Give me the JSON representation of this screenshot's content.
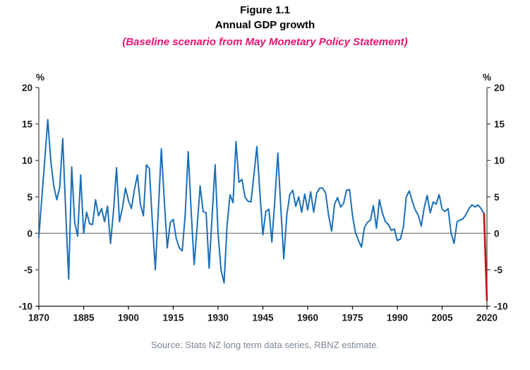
{
  "title": {
    "figure_number": "Figure 1.1",
    "figure_name": "Annual GDP growth",
    "subtitle": "(Baseline scenario from May Monetary Policy Statement)"
  },
  "source": "Source: Stats NZ long term data series, RBNZ estimate.",
  "colors": {
    "historical": "#1b6fb8",
    "estimate": "#c21212",
    "subtitle": "#e81370",
    "axis": "#4d4d4d",
    "axis_bottom": "#1a1a1a",
    "zero_line": "#808080",
    "tick_text": "#1a1a1a",
    "source_text": "#7b8794"
  },
  "chart_data": {
    "type": "line",
    "title": "Annual GDP growth",
    "ylabel_left": "%",
    "ylabel_right": "%",
    "ylim": [
      -10,
      20
    ],
    "yticks": [
      20,
      15,
      10,
      5,
      0,
      -5,
      -10
    ],
    "xlim": [
      1870,
      2020
    ],
    "xticks": [
      1870,
      1885,
      1900,
      1915,
      1930,
      1945,
      1960,
      1975,
      1990,
      2005,
      2020
    ],
    "grid": false,
    "legend": "none",
    "zero_line": true,
    "series": [
      {
        "name": "Annual GDP growth (Stats NZ long term data series)",
        "color_key": "historical",
        "start_year": 1870,
        "values": [
          -0.6,
          4.8,
          10.2,
          15.6,
          10.0,
          6.5,
          4.6,
          6.3,
          13.0,
          3.0,
          -6.3,
          9.1,
          1.5,
          -0.4,
          8.0,
          0.0,
          2.9,
          1.3,
          1.2,
          4.6,
          2.4,
          3.4,
          1.6,
          3.7,
          -1.4,
          3.0,
          9.0,
          1.6,
          3.5,
          6.2,
          4.5,
          3.4,
          6.0,
          8.0,
          4.0,
          2.4,
          9.4,
          8.9,
          1.5,
          -5.0,
          3.0,
          11.6,
          4.5,
          -2.0,
          1.5,
          1.9,
          -0.7,
          -2.0,
          -2.4,
          2.5,
          11.2,
          3.0,
          -4.3,
          1.0,
          6.5,
          3.0,
          2.8,
          -4.8,
          2.3,
          9.4,
          0.0,
          -5.0,
          -6.8,
          1.0,
          5.3,
          4.2,
          12.6,
          7.0,
          7.4,
          5.0,
          4.4,
          4.3,
          8.0,
          11.9,
          5.5,
          -0.2,
          3.0,
          3.3,
          -1.2,
          4.5,
          11.0,
          3.5,
          -3.5,
          2.5,
          5.3,
          5.9,
          3.7,
          5.0,
          2.9,
          5.4,
          3.2,
          5.7,
          2.9,
          5.5,
          6.2,
          6.2,
          5.5,
          2.5,
          0.3,
          4.0,
          4.9,
          3.6,
          4.1,
          5.9,
          6.0,
          2.4,
          0.1,
          -1.0,
          -1.9,
          0.8,
          1.5,
          1.8,
          3.8,
          0.7,
          4.6,
          2.8,
          1.6,
          1.2,
          0.4,
          0.6,
          -1.0,
          -0.8,
          0.8,
          5.0,
          5.8,
          4.4,
          3.2,
          2.5,
          1.0,
          3.5,
          5.2,
          2.8,
          4.3,
          4.0,
          5.3,
          3.3,
          3.0,
          3.4,
          0.0,
          -1.4,
          1.6,
          1.8,
          2.0,
          2.6,
          3.4,
          3.9,
          3.6,
          3.9,
          3.4,
          2.7
        ]
      },
      {
        "name": "RBNZ estimate (baseline scenario, May Monetary Policy Statement)",
        "color_key": "estimate",
        "points": [
          [
            2019,
            2.7
          ],
          [
            2020,
            -9.2
          ]
        ]
      }
    ]
  }
}
